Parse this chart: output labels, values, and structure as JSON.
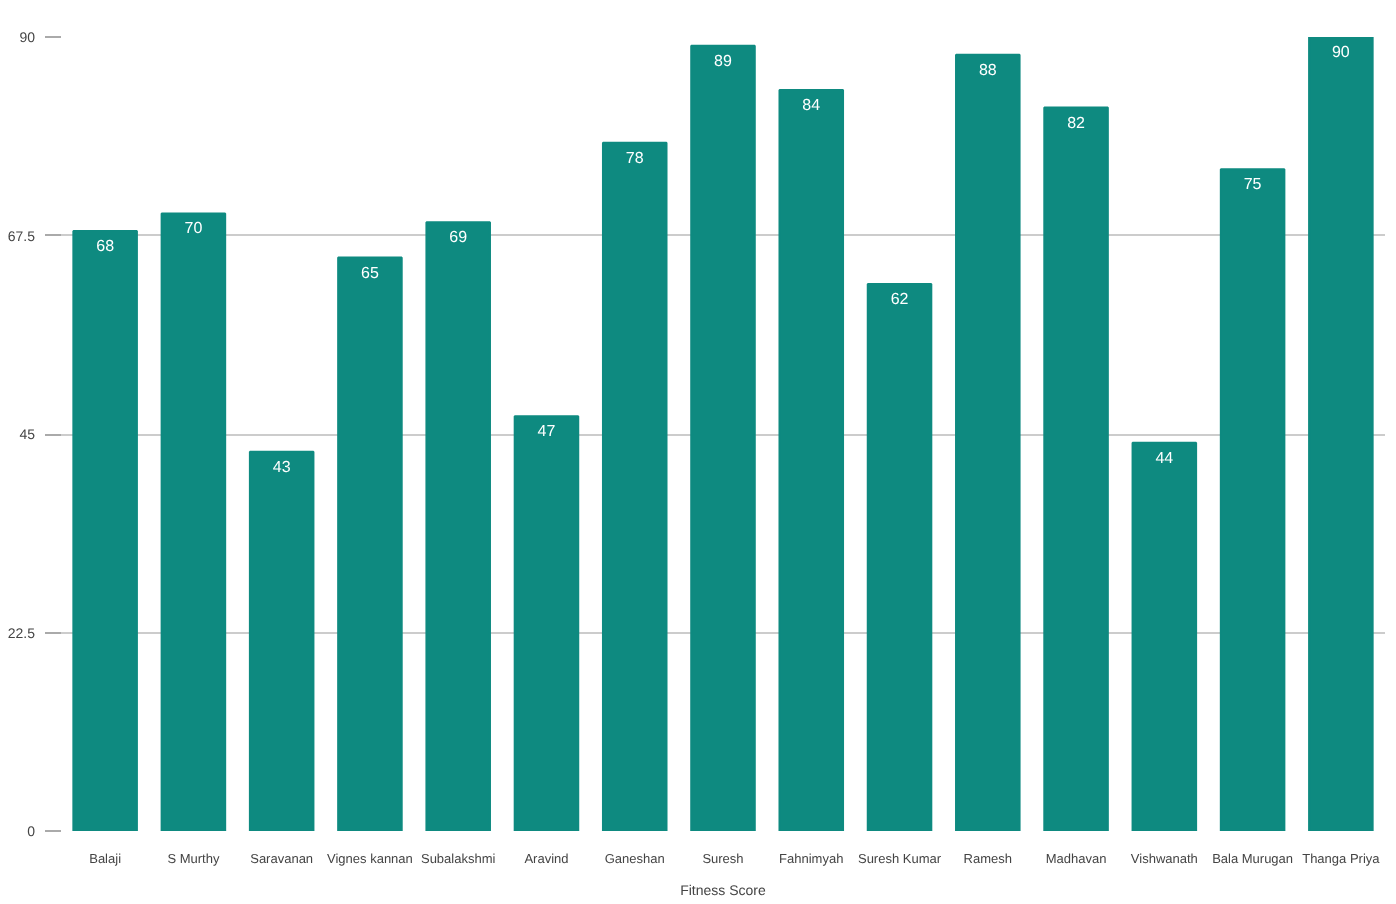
{
  "chart_data": {
    "type": "bar",
    "xlabel": "Fitness Score",
    "categories": [
      "Balaji",
      "S Murthy",
      "Saravanan",
      "Vignes kannan",
      "Subalakshmi",
      "Aravind",
      "Ganeshan",
      "Suresh",
      "Fahnimyah",
      "Suresh Kumar",
      "Ramesh",
      "Madhavan",
      "Vishwanath",
      "Bala Murugan",
      "Thanga Priya"
    ],
    "values": [
      68,
      70,
      43,
      65,
      69,
      47,
      78,
      89,
      84,
      62,
      88,
      82,
      44,
      75,
      90
    ],
    "color": "#0e8a80",
    "ylim": [
      0,
      90
    ],
    "yticks": [
      0,
      22.5,
      45,
      67.5,
      90
    ],
    "grid": "y",
    "data_labels": true
  }
}
